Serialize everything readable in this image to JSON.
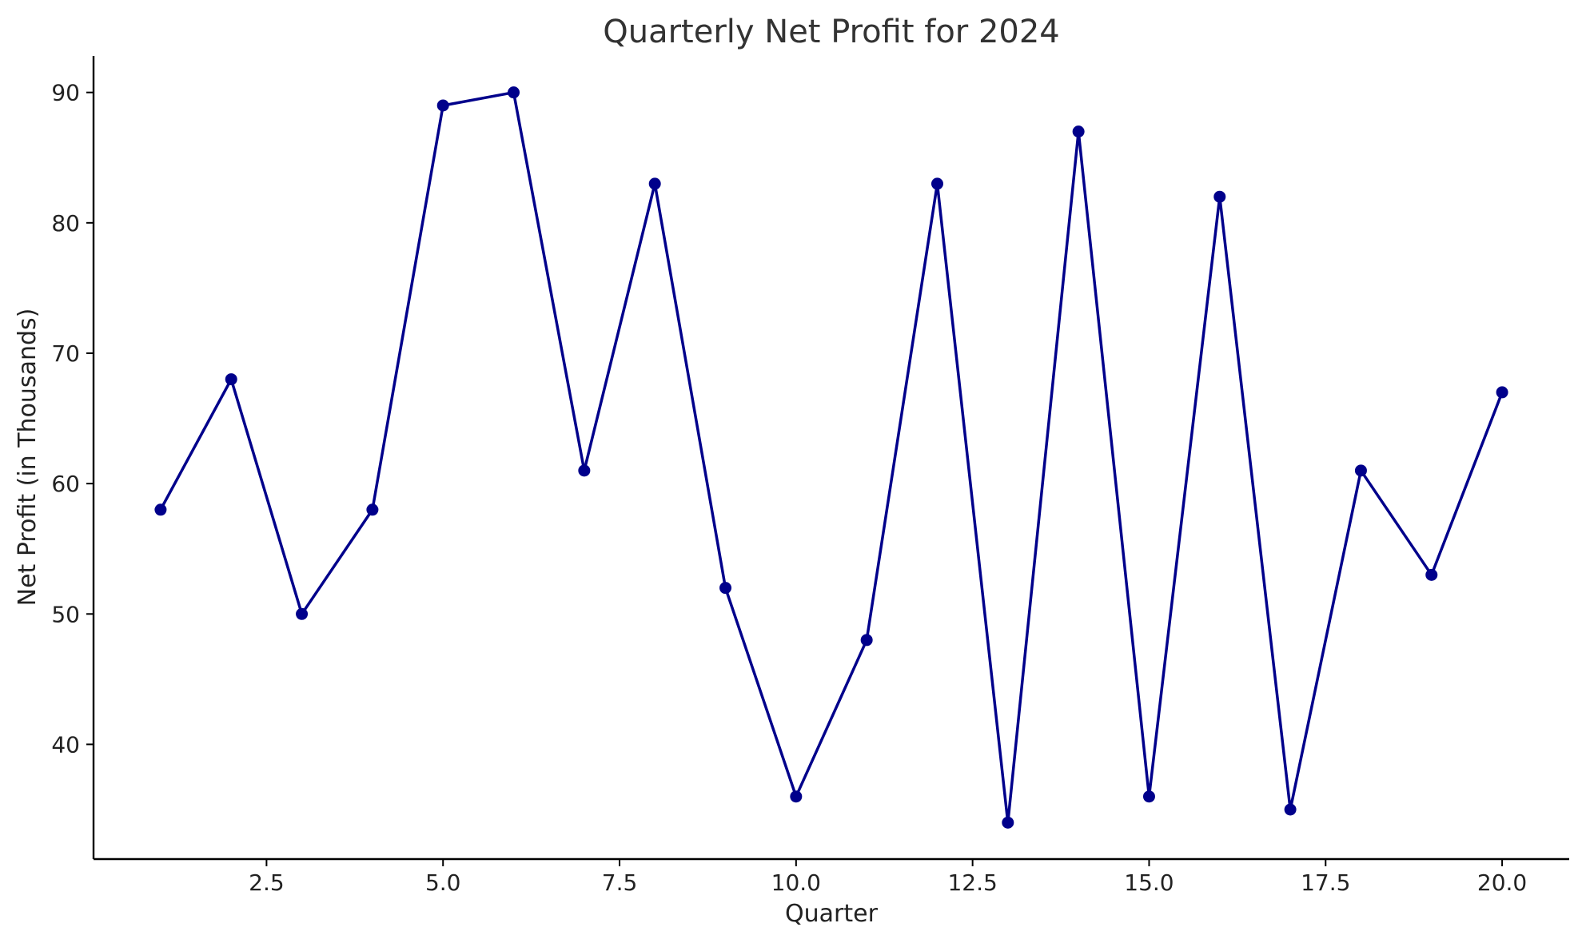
{
  "chart_data": {
    "type": "line",
    "title": "Quarterly Net Profit for 2024",
    "xlabel": "Quarter",
    "ylabel": "Net Profit (in Thousands)",
    "x": [
      1,
      2,
      3,
      4,
      5,
      6,
      7,
      8,
      9,
      10,
      11,
      12,
      13,
      14,
      15,
      16,
      17,
      18,
      19,
      20
    ],
    "series": [
      {
        "values": [
          58,
          68,
          50,
          58,
          89,
          90,
          61,
          83,
          52,
          36,
          48,
          83,
          34,
          87,
          36,
          82,
          35,
          61,
          53,
          67
        ],
        "color": "#00008b",
        "marker": "circle"
      }
    ],
    "xlim": [
      0.05,
      20.95
    ],
    "ylim": [
      31.2,
      92.8
    ],
    "xticks": [
      2.5,
      5.0,
      7.5,
      10.0,
      12.5,
      15.0,
      17.5,
      20.0
    ],
    "xtick_labels": [
      "2.5",
      "5.0",
      "7.5",
      "10.0",
      "12.5",
      "15.0",
      "17.5",
      "20.0"
    ],
    "yticks": [
      40,
      50,
      60,
      70,
      80,
      90
    ],
    "ytick_labels": [
      "40",
      "50",
      "60",
      "70",
      "80",
      "90"
    ],
    "grid": false,
    "legend": "none",
    "axis_color": "#000000"
  }
}
